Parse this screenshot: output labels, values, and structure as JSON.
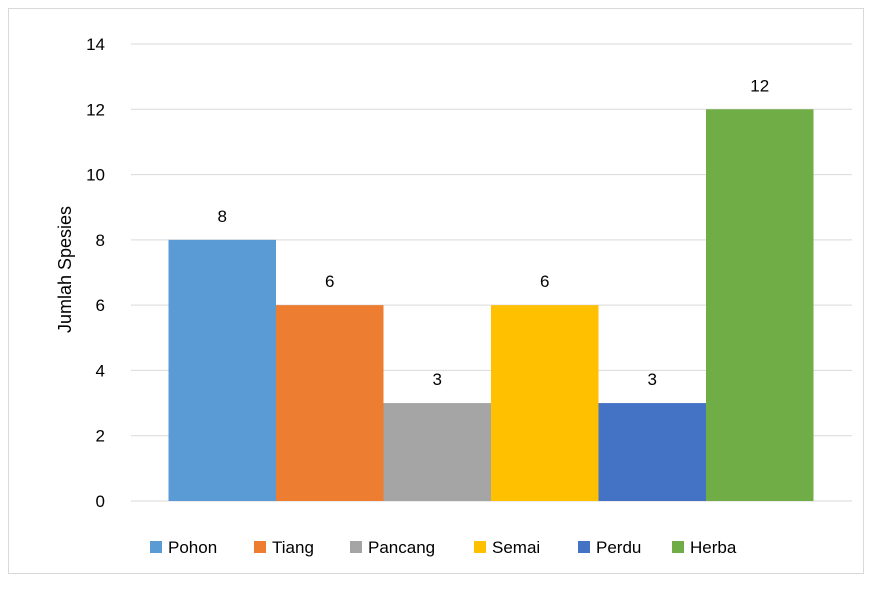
{
  "chart_data": {
    "type": "bar",
    "title": "",
    "xlabel": "",
    "ylabel": "Jumlah Spesies",
    "ylim": [
      0,
      14
    ],
    "yticks": [
      0,
      2,
      4,
      6,
      8,
      10,
      12,
      14
    ],
    "grid": true,
    "legend_position": "bottom",
    "categories": [
      "Pohon",
      "Tiang",
      "Pancang",
      "Semai",
      "Perdu",
      "Herba"
    ],
    "values": [
      8,
      6,
      3,
      6,
      3,
      12
    ],
    "colors": [
      "#5b9bd5",
      "#ed7d31",
      "#a5a5a5",
      "#ffc000",
      "#4472c4",
      "#70ad47"
    ],
    "data_labels": [
      "8",
      "6",
      "3",
      "6",
      "3",
      "12"
    ]
  }
}
